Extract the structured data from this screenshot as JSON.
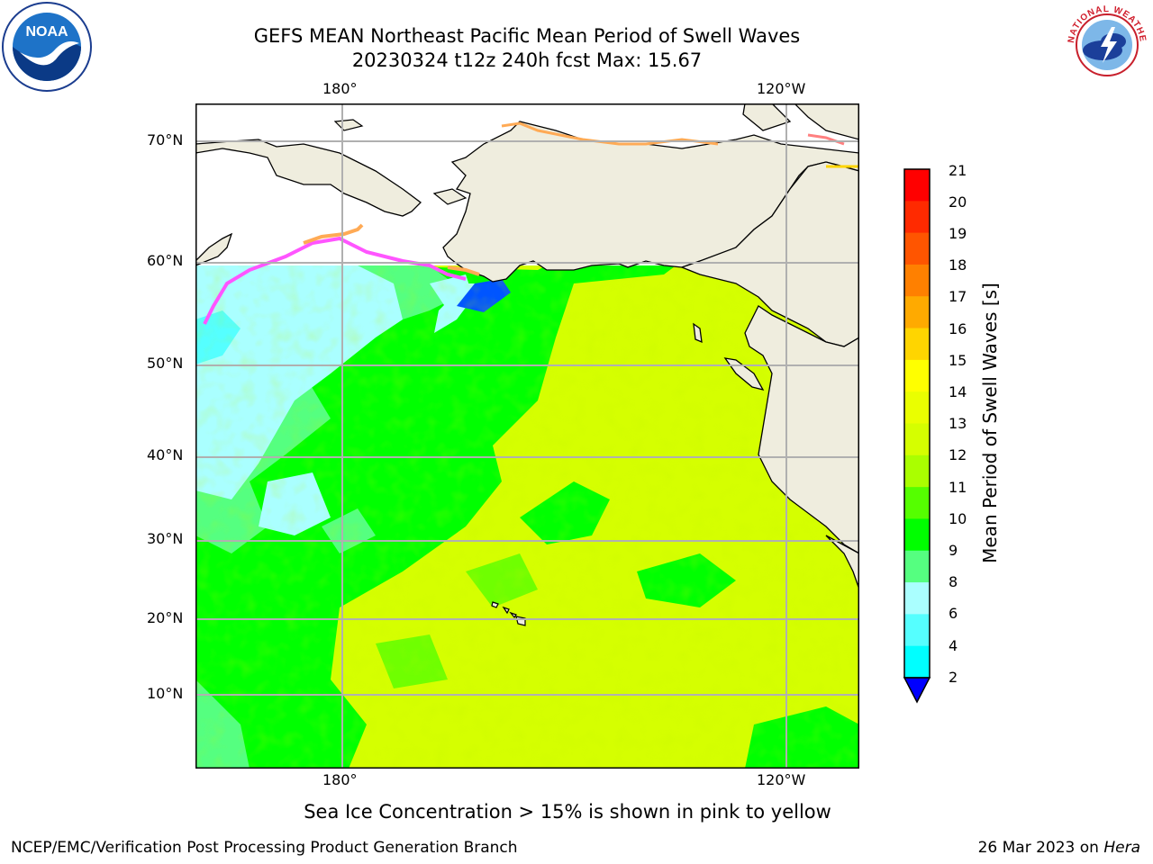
{
  "title": {
    "line1": "GEFS MEAN Northeast Pacific Mean Period of Swell Waves",
    "line2": "20230324 t12z 240h fcst   Max: 15.67"
  },
  "logos": {
    "left": {
      "name": "noaa-logo",
      "text": "NOAA"
    },
    "right": {
      "name": "nws-logo",
      "text": "NATIONAL WEATHER SERVICE"
    }
  },
  "map": {
    "lon_labels_top": [
      "180°",
      "120°W"
    ],
    "lon_labels_bottom": [
      "180°",
      "120°W"
    ],
    "lat_labels": [
      "70°N",
      "60°N",
      "50°N",
      "40°N",
      "30°N",
      "20°N",
      "10°N"
    ],
    "colors": {
      "land": "#efedde",
      "ice_free_white": "#ffffff",
      "grid": "#b0b0b0",
      "coast": "#000000"
    }
  },
  "colorbar": {
    "title": "Mean Period of Swell Waves [s]",
    "ticks": [
      "21",
      "20",
      "19",
      "18",
      "17",
      "16",
      "15",
      "14",
      "13",
      "12",
      "11",
      "10",
      "9",
      "8",
      "6",
      "4",
      "2"
    ],
    "colors": [
      "#ff0000",
      "#ff2a00",
      "#ff5500",
      "#ff8000",
      "#ffaa00",
      "#ffd500",
      "#ffff00",
      "#eaff00",
      "#d5ff00",
      "#aaff00",
      "#55ff00",
      "#00ff00",
      "#55ff80",
      "#aaffff",
      "#55ffff",
      "#00ffff",
      "#00aaff",
      "#0055ff",
      "#0000ff"
    ]
  },
  "caption": "Sea Ice Concentration > 15% is shown in pink to yellow",
  "footer": {
    "left": "NCEP/EMC/Verification Post Processing Product Generation Branch",
    "right_date": "26 Mar 2023 on ",
    "right_host": "Hera"
  }
}
